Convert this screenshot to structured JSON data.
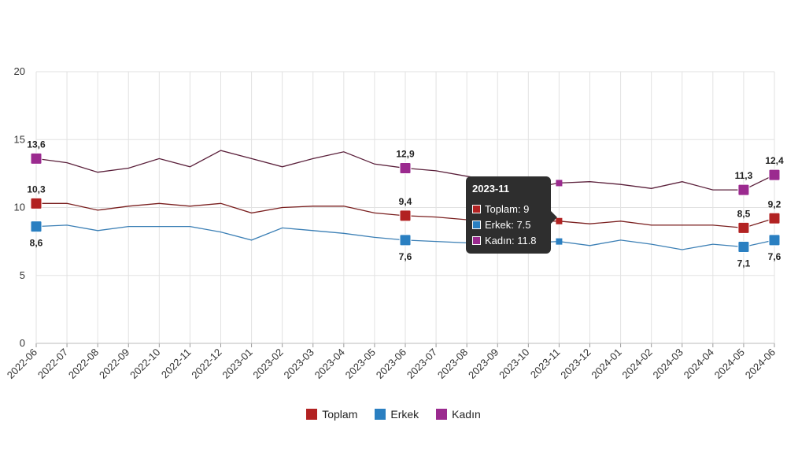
{
  "chart_data": {
    "type": "line",
    "categories": [
      "2022-06",
      "2022-07",
      "2022-08",
      "2022-09",
      "2022-10",
      "2022-11",
      "2022-12",
      "2023-01",
      "2023-02",
      "2023-03",
      "2023-04",
      "2023-05",
      "2023-06",
      "2023-07",
      "2023-08",
      "2023-09",
      "2023-10",
      "2023-11",
      "2023-12",
      "2024-01",
      "2024-02",
      "2024-03",
      "2024-04",
      "2024-05",
      "2024-06"
    ],
    "ylim": [
      0,
      20
    ],
    "yticks": [
      "0",
      "5",
      "10",
      "15",
      "20"
    ],
    "grid": true,
    "legend_position": "bottom",
    "series": [
      {
        "name": "Toplam",
        "color": "#b22222",
        "line_color": "#7a1f1f",
        "values": [
          10.3,
          10.3,
          9.8,
          10.1,
          10.3,
          10.1,
          10.3,
          9.6,
          10.0,
          10.1,
          10.1,
          9.6,
          9.4,
          9.3,
          9.1,
          8.9,
          9.0,
          9.0,
          8.8,
          9.0,
          8.7,
          8.7,
          8.7,
          8.5,
          9.2
        ],
        "labels": {
          "0": "10,3",
          "12": "9,4",
          "23": "8,5",
          "24": "9,2"
        }
      },
      {
        "name": "Erkek",
        "color": "#2a7fc1",
        "line_color": "#3b7fb5",
        "values": [
          8.6,
          8.7,
          8.3,
          8.6,
          8.6,
          8.6,
          8.2,
          7.6,
          8.5,
          8.3,
          8.1,
          7.8,
          7.6,
          7.5,
          7.4,
          7.4,
          7.4,
          7.5,
          7.2,
          7.6,
          7.3,
          6.9,
          7.3,
          7.1,
          7.6
        ],
        "labels": {
          "0": "8,6",
          "12": "7,6",
          "23": "7,1",
          "24": "7,6"
        }
      },
      {
        "name": "Kadın",
        "color": "#9b2a8f",
        "line_color": "#5a1f3a",
        "values": [
          13.6,
          13.3,
          12.6,
          12.9,
          13.6,
          13.0,
          14.2,
          13.6,
          13.0,
          13.6,
          14.1,
          13.2,
          12.9,
          12.7,
          12.3,
          11.9,
          11.4,
          11.8,
          11.9,
          11.7,
          11.4,
          11.9,
          11.3,
          11.3,
          12.4
        ],
        "labels": {
          "0": "13,6",
          "12": "12,9",
          "23": "11,3",
          "24": "12,4"
        }
      }
    ],
    "big_marker_indices": [
      0,
      12,
      23,
      24
    ],
    "small_marker_indices": [
      17
    ]
  },
  "legend": [
    {
      "name": "Toplam",
      "color": "#b22222"
    },
    {
      "name": "Erkek",
      "color": "#2a7fc1"
    },
    {
      "name": "Kadın",
      "color": "#9b2a8f"
    }
  ],
  "tooltip": {
    "title": "2023-11",
    "rows": [
      {
        "text": "Toplam: 9",
        "color": "#b22222"
      },
      {
        "text": "Erkek: 7.5",
        "color": "#2a7fc1"
      },
      {
        "text": "Kadın: 11.8",
        "color": "#9b2a8f"
      }
    ]
  }
}
